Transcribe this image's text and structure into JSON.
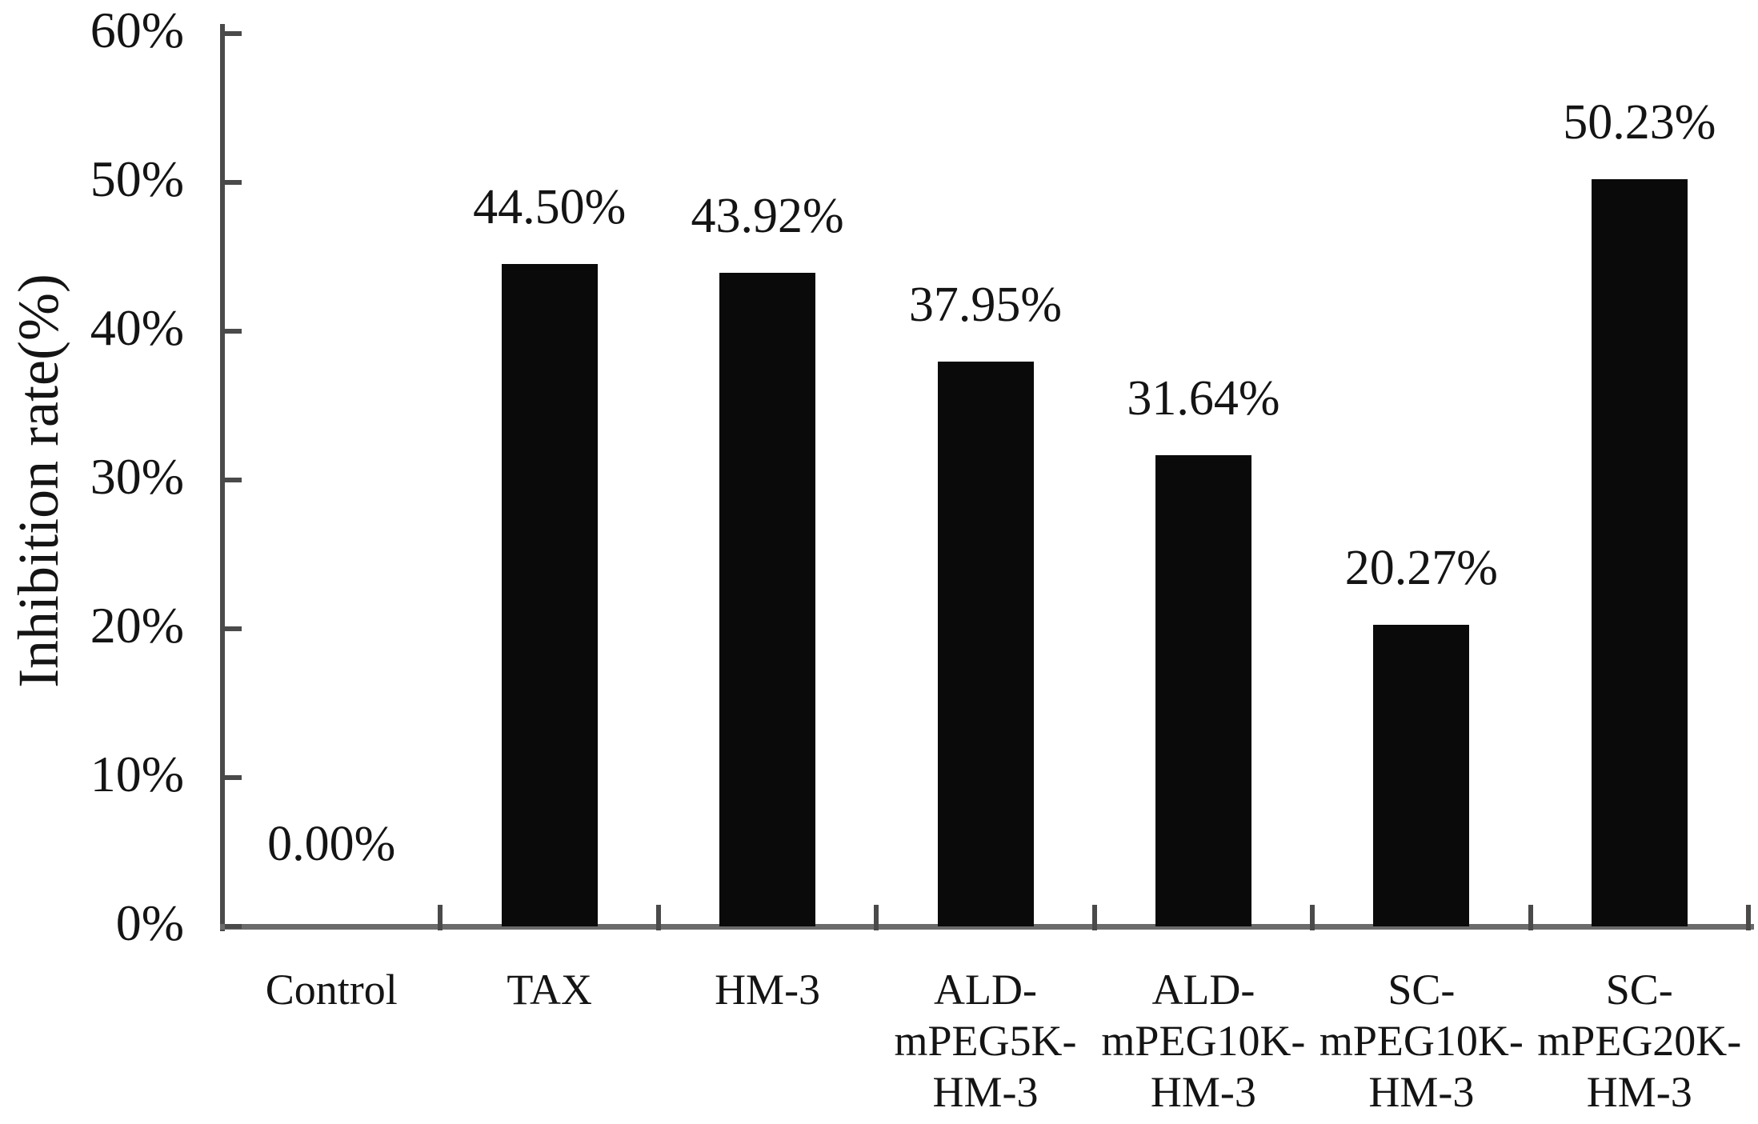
{
  "figure": {
    "background": "#ffffff"
  },
  "chart_data": {
    "type": "bar",
    "title": "",
    "ylabel": "Inhibition rate(%)",
    "xlabel": "",
    "ylim": [
      0,
      60
    ],
    "grid": false,
    "legend": "none",
    "bar_color": "#0a0a0a",
    "axis_color": "#4a4a4a",
    "baseline_color": "#6b6b6b",
    "text_color": "#141414",
    "y_ticks": [
      {
        "value": 0,
        "label": "0%"
      },
      {
        "value": 10,
        "label": "10%"
      },
      {
        "value": 20,
        "label": "20%"
      },
      {
        "value": 30,
        "label": "30%"
      },
      {
        "value": 40,
        "label": "40%"
      },
      {
        "value": 50,
        "label": "50%"
      },
      {
        "value": 60,
        "label": "60%"
      }
    ],
    "categories": [
      "Control",
      "TAX",
      "HM-3",
      "ALD-\nmPEG5K-\nHM-3",
      "ALD-\nmPEG10K-\nHM-3",
      "SC-\nmPEG10K-\nHM-3",
      "SC-\nmPEG20K-\nHM-3"
    ],
    "values": [
      0,
      44.5,
      43.92,
      37.95,
      31.64,
      20.27,
      50.23
    ],
    "data_labels": [
      "0.00%",
      "44.50%",
      "43.92%",
      "37.95%",
      "31.64%",
      "20.27%",
      "50.23%"
    ]
  }
}
